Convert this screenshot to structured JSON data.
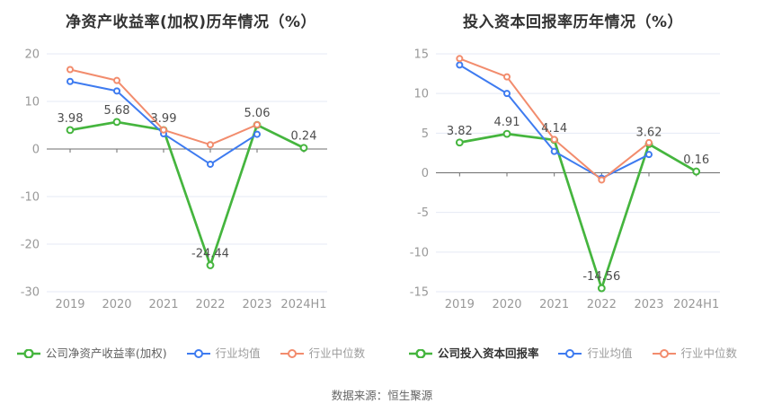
{
  "source_note": "数据来源：恒生聚源",
  "colors": {
    "grid": "#e4e9f4",
    "axis": "#6e6e6e",
    "tick_label": "#999999",
    "value_label": "#4d4d4d",
    "title": "#333333",
    "source": "#666666",
    "marker_fill": "#ffffff"
  },
  "chart_data": [
    {
      "type": "line",
      "title": "净资产收益率(加权)历年情况（%）",
      "categories": [
        "2019",
        "2020",
        "2021",
        "2022",
        "2023",
        "2024H1"
      ],
      "ylim": [
        -30,
        20
      ],
      "yticks": [
        20,
        10,
        0,
        -10,
        -20,
        -30
      ],
      "grid": true,
      "legend_position": "bottom",
      "series": [
        {
          "name": "公司净资产收益率(加权)",
          "values": [
            3.98,
            5.68,
            3.99,
            -24.44,
            5.06,
            0.24
          ],
          "color": "#45b53e",
          "show_labels": true,
          "legend_text_color": "#606060",
          "legend_bold": false
        },
        {
          "name": "行业均值",
          "values": [
            14.2,
            12.2,
            3.2,
            -3.2,
            3.1,
            null
          ],
          "color": "#3e7bf0",
          "show_labels": false,
          "legend_text_color": "#9b9b9b",
          "legend_bold": false
        },
        {
          "name": "行业中位数",
          "values": [
            16.7,
            14.4,
            4.0,
            0.9,
            5.1,
            null
          ],
          "color": "#f28c6d",
          "show_labels": false,
          "legend_text_color": "#9b9b9b",
          "legend_bold": false
        }
      ]
    },
    {
      "type": "line",
      "title": "投入资本回报率历年情况（%）",
      "categories": [
        "2019",
        "2020",
        "2021",
        "2022",
        "2023",
        "2024H1"
      ],
      "ylim": [
        -15,
        15
      ],
      "yticks": [
        15,
        10,
        5,
        0,
        -5,
        -10,
        -15
      ],
      "grid": true,
      "legend_position": "bottom",
      "series": [
        {
          "name": "公司投入资本回报率",
          "values": [
            3.82,
            4.91,
            4.14,
            -14.56,
            3.62,
            0.16
          ],
          "color": "#45b53e",
          "show_labels": true,
          "legend_text_color": "#333333",
          "legend_bold": true
        },
        {
          "name": "行业均值",
          "values": [
            13.6,
            10.0,
            2.7,
            -0.7,
            2.3,
            null
          ],
          "color": "#3e7bf0",
          "show_labels": false,
          "legend_text_color": "#9b9b9b",
          "legend_bold": false
        },
        {
          "name": "行业中位数",
          "values": [
            14.4,
            12.1,
            4.2,
            -0.9,
            3.8,
            null
          ],
          "color": "#f28c6d",
          "show_labels": false,
          "legend_text_color": "#9b9b9b",
          "legend_bold": false
        }
      ]
    }
  ]
}
